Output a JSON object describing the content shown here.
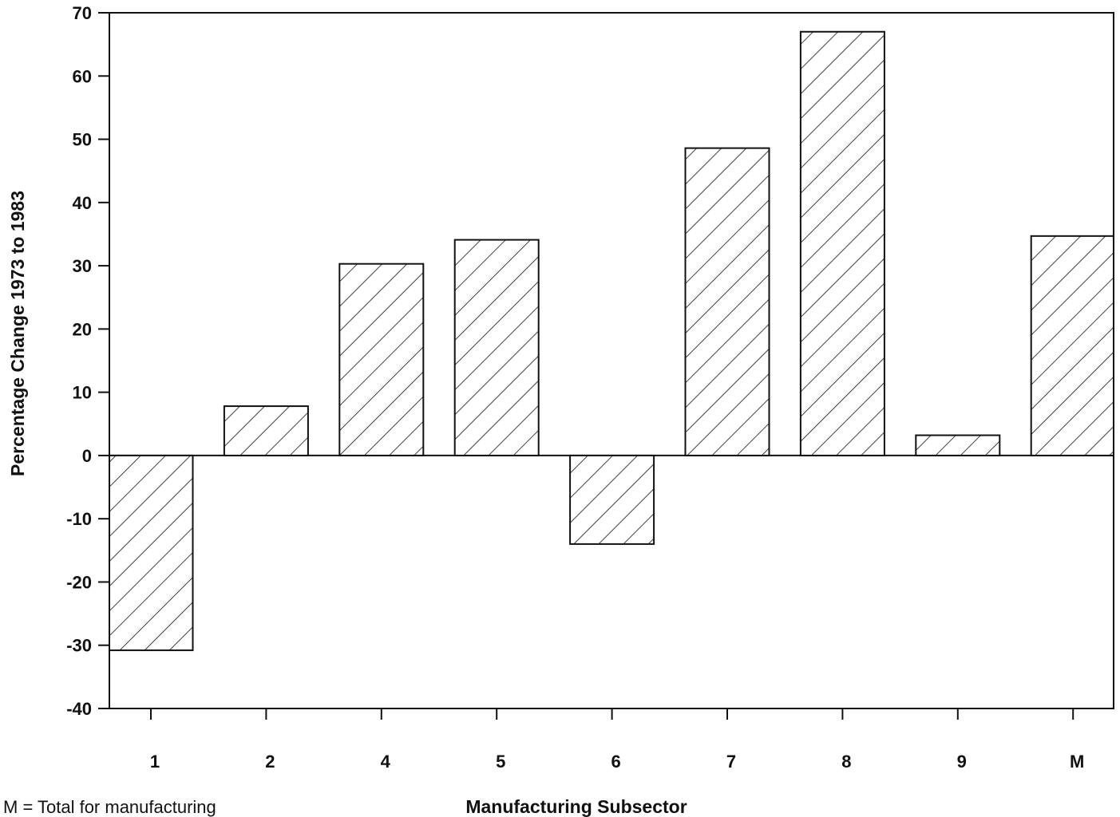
{
  "chart_data": {
    "type": "bar",
    "categories": [
      "1",
      "2",
      "4",
      "5",
      "6",
      "7",
      "8",
      "9",
      "M"
    ],
    "values": [
      -30.8,
      7.8,
      30.3,
      34.1,
      -14.0,
      48.6,
      67.0,
      3.2,
      34.7
    ],
    "title": "",
    "xlabel": "Manufacturing Subsector",
    "ylabel": "Percentage Change 1973 to 1983",
    "ylim": [
      -40,
      70
    ],
    "yticks": [
      70,
      60,
      50,
      40,
      30,
      20,
      10,
      0,
      -10,
      -20,
      -30,
      -40
    ],
    "grid": false,
    "bar_fill": "hatched diagonal",
    "bar_color": "#ffffff",
    "line_color": "#111111"
  },
  "footnote": "M = Total for manufacturing"
}
